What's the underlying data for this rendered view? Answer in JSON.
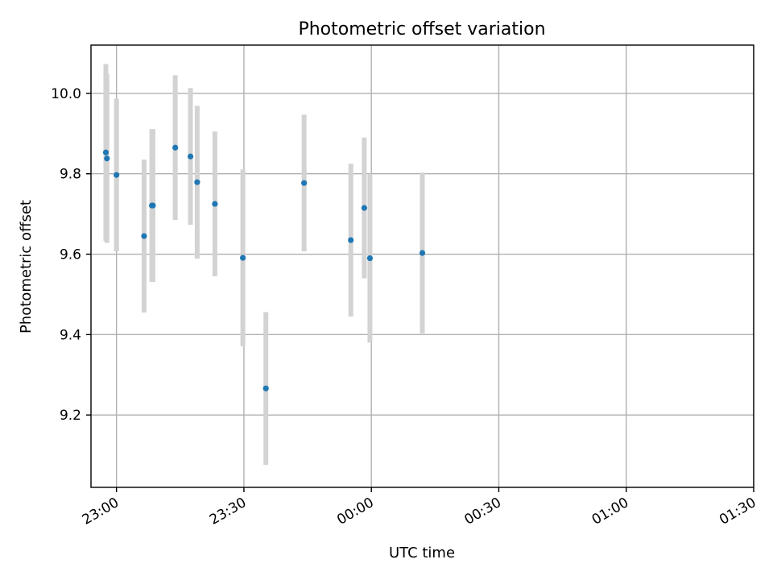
{
  "chart_data": {
    "type": "scatter",
    "title": "Photometric offset variation",
    "xlabel": "UTC time",
    "ylabel": "Photometric offset",
    "x_axis_type": "time",
    "x_ticks": [
      "23:00",
      "23:30",
      "00:00",
      "00:30",
      "01:00",
      "01:30"
    ],
    "y_ticks": [
      "9.2",
      "9.4",
      "9.6",
      "9.8",
      "10.0"
    ],
    "xlim": [
      "22:54",
      "01:30"
    ],
    "ylim": [
      9.02,
      10.12
    ],
    "grid": true,
    "colors": {
      "point": "#1f77b4",
      "errorbar": "#d3d3d3"
    },
    "series": [
      {
        "points": [
          {
            "x": "22:57:30",
            "y": 9.853,
            "err": 0.22
          },
          {
            "x": "22:57:45",
            "y": 9.838,
            "err": 0.21
          },
          {
            "x": "23:00:00",
            "y": 9.797,
            "err": 0.19
          },
          {
            "x": "23:06:30",
            "y": 9.645,
            "err": 0.19
          },
          {
            "x": "23:08:20",
            "y": 9.721,
            "err": 0.19
          },
          {
            "x": "23:08:35",
            "y": 9.721,
            "err": 0.19
          },
          {
            "x": "23:13:50",
            "y": 9.865,
            "err": 0.18
          },
          {
            "x": "23:17:25",
            "y": 9.843,
            "err": 0.17
          },
          {
            "x": "23:19:00",
            "y": 9.779,
            "err": 0.19
          },
          {
            "x": "23:23:10",
            "y": 9.725,
            "err": 0.18
          },
          {
            "x": "23:29:45",
            "y": 9.591,
            "err": 0.22
          },
          {
            "x": "23:35:10",
            "y": 9.266,
            "err": 0.19
          },
          {
            "x": "23:44:10",
            "y": 9.777,
            "err": 0.17
          },
          {
            "x": "23:55:10",
            "y": 9.635,
            "err": 0.19
          },
          {
            "x": "23:58:20",
            "y": 9.715,
            "err": 0.175
          },
          {
            "x": "23:59:40",
            "y": 9.59,
            "err": 0.21
          },
          {
            "x": "00:12:00",
            "y": 9.603,
            "err": 0.2
          }
        ]
      }
    ]
  }
}
